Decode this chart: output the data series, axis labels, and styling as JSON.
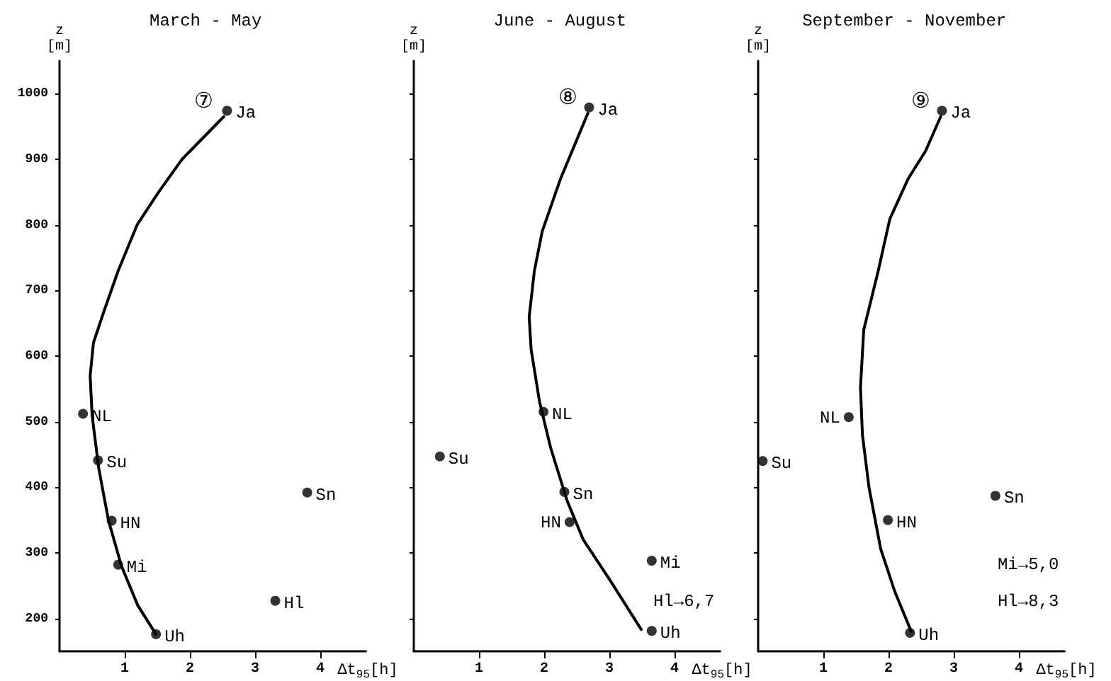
{
  "chart_data": [
    {
      "type": "scatter",
      "title": "March - May",
      "xlabel": "Δt$_{95}$[h]",
      "ylabel": "z\n[m]",
      "xlim": [
        0,
        4.7
      ],
      "xticks": [
        1,
        2,
        3,
        4
      ],
      "ylim": [
        150,
        1050
      ],
      "yticks": [
        200,
        300,
        400,
        500,
        600,
        700,
        800,
        900,
        1000
      ],
      "grid": false,
      "marker": "circle",
      "series": [
        {
          "color": "#000000",
          "x": [
            2.57,
            0.36,
            0.59,
            0.8,
            0.9,
            1.48,
            3.8,
            3.31
          ],
          "values": [
            974,
            512,
            441,
            349,
            282,
            176,
            392,
            227
          ]
        },
        {
          "type": "line",
          "color": "#000000",
          "marker": "none",
          "x": [
            1.48,
            1.2,
            0.95,
            0.75,
            0.6,
            0.5,
            0.47,
            0.52,
            0.67,
            0.9,
            1.19,
            1.52,
            1.88,
            2.52
          ],
          "values": [
            176,
            220,
            280,
            350,
            430,
            510,
            570,
            620,
            665,
            730,
            800,
            850,
            900,
            965
          ]
        }
      ],
      "annotations": [
        "⑦",
        {
          "text": "Ja",
          "x": 2.57,
          "y": 974
        },
        {
          "text": "NL",
          "x": 0.36,
          "y": 512
        },
        {
          "text": "Su",
          "x": 0.59,
          "y": 441
        },
        {
          "text": "HN",
          "x": 0.8,
          "y": 349
        },
        {
          "text": "Mi",
          "x": 0.9,
          "y": 282
        },
        {
          "text": "Uh",
          "x": 1.48,
          "y": 176
        },
        {
          "text": "Sn",
          "x": 3.8,
          "y": 392
        },
        {
          "text": "Hl",
          "x": 3.31,
          "y": 227
        }
      ]
    },
    {
      "type": "scatter",
      "title": "June - August",
      "xlabel": "Δt$_{95}$[h]",
      "ylabel": "z\n[m]",
      "xlim": [
        0,
        4.7
      ],
      "xticks": [
        1,
        2,
        3,
        4
      ],
      "ylim": [
        150,
        1050
      ],
      "yticks": [
        200,
        300,
        400,
        500,
        600,
        700,
        800,
        900,
        1000
      ],
      "tick_labels": "x",
      "grid": false,
      "marker": "circle",
      "series": [
        {
          "color": "#000000",
          "x": [
            2.69,
            1.99,
            0.4,
            2.31,
            2.39,
            3.65,
            3.65
          ],
          "values": [
            979,
            515,
            447,
            393,
            347,
            288,
            181
          ]
        },
        {
          "type": "line",
          "color": "#000000",
          "marker": "none",
          "x": [
            3.49,
            3.0,
            2.6,
            2.35,
            2.1,
            1.93,
            1.8,
            1.77,
            1.85,
            1.97,
            2.25,
            2.67
          ],
          "values": [
            183,
            260,
            320,
            380,
            460,
            530,
            610,
            660,
            730,
            790,
            870,
            970
          ]
        }
      ],
      "annotations": [
        "⑧",
        {
          "text": "Ja",
          "x": 2.69,
          "y": 979
        },
        {
          "text": "NL",
          "x": 1.99,
          "y": 515
        },
        {
          "text": "Su",
          "x": 0.4,
          "y": 447
        },
        {
          "text": "Sn",
          "x": 2.31,
          "y": 393
        },
        {
          "text": "HN",
          "x": 2.39,
          "y": 347
        },
        {
          "text": "Mi",
          "x": 3.65,
          "y": 288
        },
        {
          "text": "Uh",
          "x": 3.65,
          "y": 181
        },
        "Hl→6,7"
      ]
    },
    {
      "type": "scatter",
      "title": "September - November",
      "xlabel": "Δt$_{95}$[h]",
      "ylabel": "z\n[m]",
      "xlim": [
        0,
        4.7
      ],
      "xticks": [
        1,
        2,
        3,
        4
      ],
      "ylim": [
        150,
        1050
      ],
      "yticks": [
        200,
        300,
        400,
        500,
        600,
        700,
        800,
        900,
        1000
      ],
      "tick_labels": "x",
      "grid": false,
      "marker": "circle",
      "series": [
        {
          "color": "#000000",
          "x": [
            2.82,
            1.39,
            0.07,
            3.64,
            1.99,
            2.33
          ],
          "values": [
            974,
            507,
            440,
            387,
            350,
            178
          ]
        },
        {
          "type": "line",
          "color": "#000000",
          "marker": "none",
          "x": [
            2.35,
            2.1,
            1.88,
            1.7,
            1.6,
            1.57,
            1.62,
            1.84,
            2.02,
            2.3,
            2.57,
            2.8
          ],
          "values": [
            180,
            240,
            306,
            400,
            480,
            552,
            640,
            729,
            809,
            870,
            913,
            965
          ]
        }
      ],
      "annotations": [
        "⑨",
        {
          "text": "Ja",
          "x": 2.82,
          "y": 974
        },
        {
          "text": "NL",
          "x": 1.39,
          "y": 507
        },
        {
          "text": "Su",
          "x": 0.07,
          "y": 440
        },
        {
          "text": "Sn",
          "x": 3.64,
          "y": 387
        },
        {
          "text": "HN",
          "x": 1.99,
          "y": 350
        },
        {
          "text": "Uh",
          "x": 2.33,
          "y": 178
        },
        "Mi→5,0",
        "Hl→8,3"
      ]
    }
  ]
}
